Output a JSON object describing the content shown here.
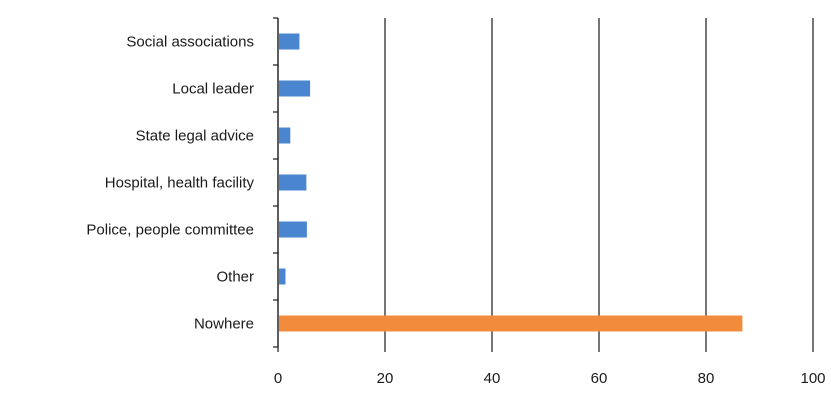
{
  "chart_data": {
    "type": "bar",
    "orientation": "horizontal",
    "categories": [
      "Social associations",
      "Local leader",
      "State legal advice",
      "Hospital, health facility",
      "Police, people committee",
      "Other",
      "Nowhere"
    ],
    "values": [
      4,
      6,
      2.3,
      5.3,
      5.4,
      1.4,
      86.8
    ],
    "bar_colors": [
      "#4a86d0",
      "#4a86d0",
      "#4a86d0",
      "#4a86d0",
      "#4a86d0",
      "#4a86d0",
      "#f28c3c"
    ],
    "xlim": [
      0,
      100
    ],
    "x_ticks": [
      "0",
      "20",
      "40",
      "60",
      "80",
      "100"
    ],
    "x_tick_values": [
      0,
      20,
      40,
      60,
      80,
      100
    ],
    "grid": "vertical",
    "legend": "none",
    "title": "",
    "xlabel": "",
    "ylabel": ""
  },
  "colors": {
    "primary_bar": "#4a86d0",
    "highlight_bar": "#f28c3c",
    "axis": "#1a1a1a",
    "grid": "#1a1a1a"
  }
}
